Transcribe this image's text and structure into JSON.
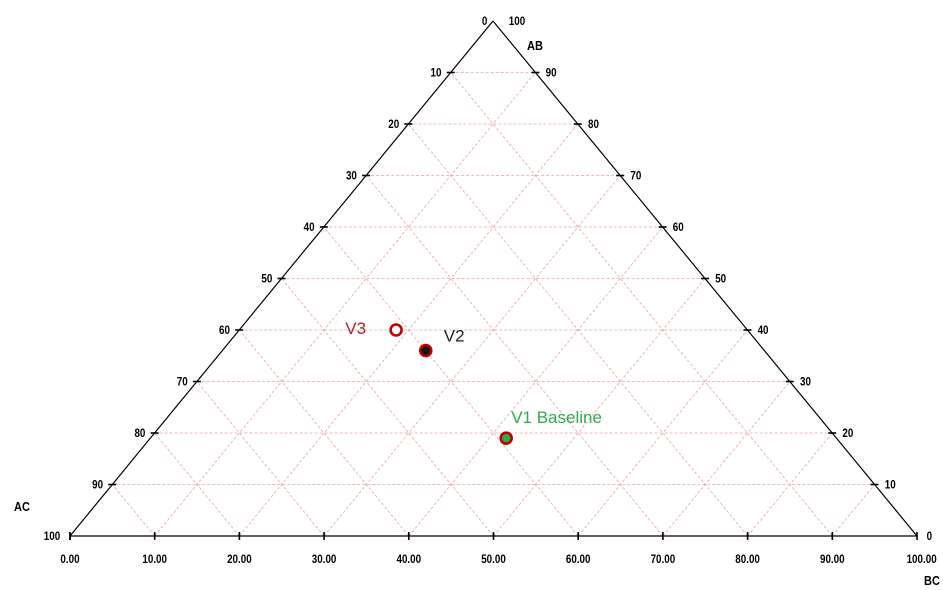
{
  "chart_data": {
    "type": "scatter",
    "subtype": "ternary",
    "corner_labels": {
      "top": "AB",
      "left": "AC",
      "right": "BC"
    },
    "ac_ticks": [
      "0",
      "10",
      "20",
      "30",
      "40",
      "50",
      "60",
      "70",
      "80",
      "90",
      "100"
    ],
    "ab_ticks": [
      "100",
      "90",
      "80",
      "70",
      "60",
      "50",
      "40",
      "30",
      "20",
      "10",
      "0"
    ],
    "bc_ticks": [
      "0.00",
      "10.00",
      "20.00",
      "30.00",
      "40.00",
      "50.00",
      "60.00",
      "70.00",
      "80.00",
      "90.00",
      "100.00"
    ],
    "grid": true,
    "points": [
      {
        "label": "V3",
        "bc": 38.5,
        "ac": 60.0,
        "style": "hollow",
        "ring_color": "#c00000",
        "fill_color": "#ffffff",
        "label_color": "#b22222",
        "label_side": "left"
      },
      {
        "label": "V2",
        "bc": 42.0,
        "ac": 64.0,
        "style": "filled",
        "ring_color": "#c00000",
        "fill_color": "#111111",
        "label_color": "#222222",
        "label_side": "right"
      },
      {
        "label": "V1 Baseline",
        "bc": 51.5,
        "ac": 81.0,
        "style": "filled",
        "ring_color": "#c00000",
        "fill_color": "#2eaa4a",
        "label_color": "#2eaa4a",
        "label_side": "above-right"
      }
    ]
  }
}
